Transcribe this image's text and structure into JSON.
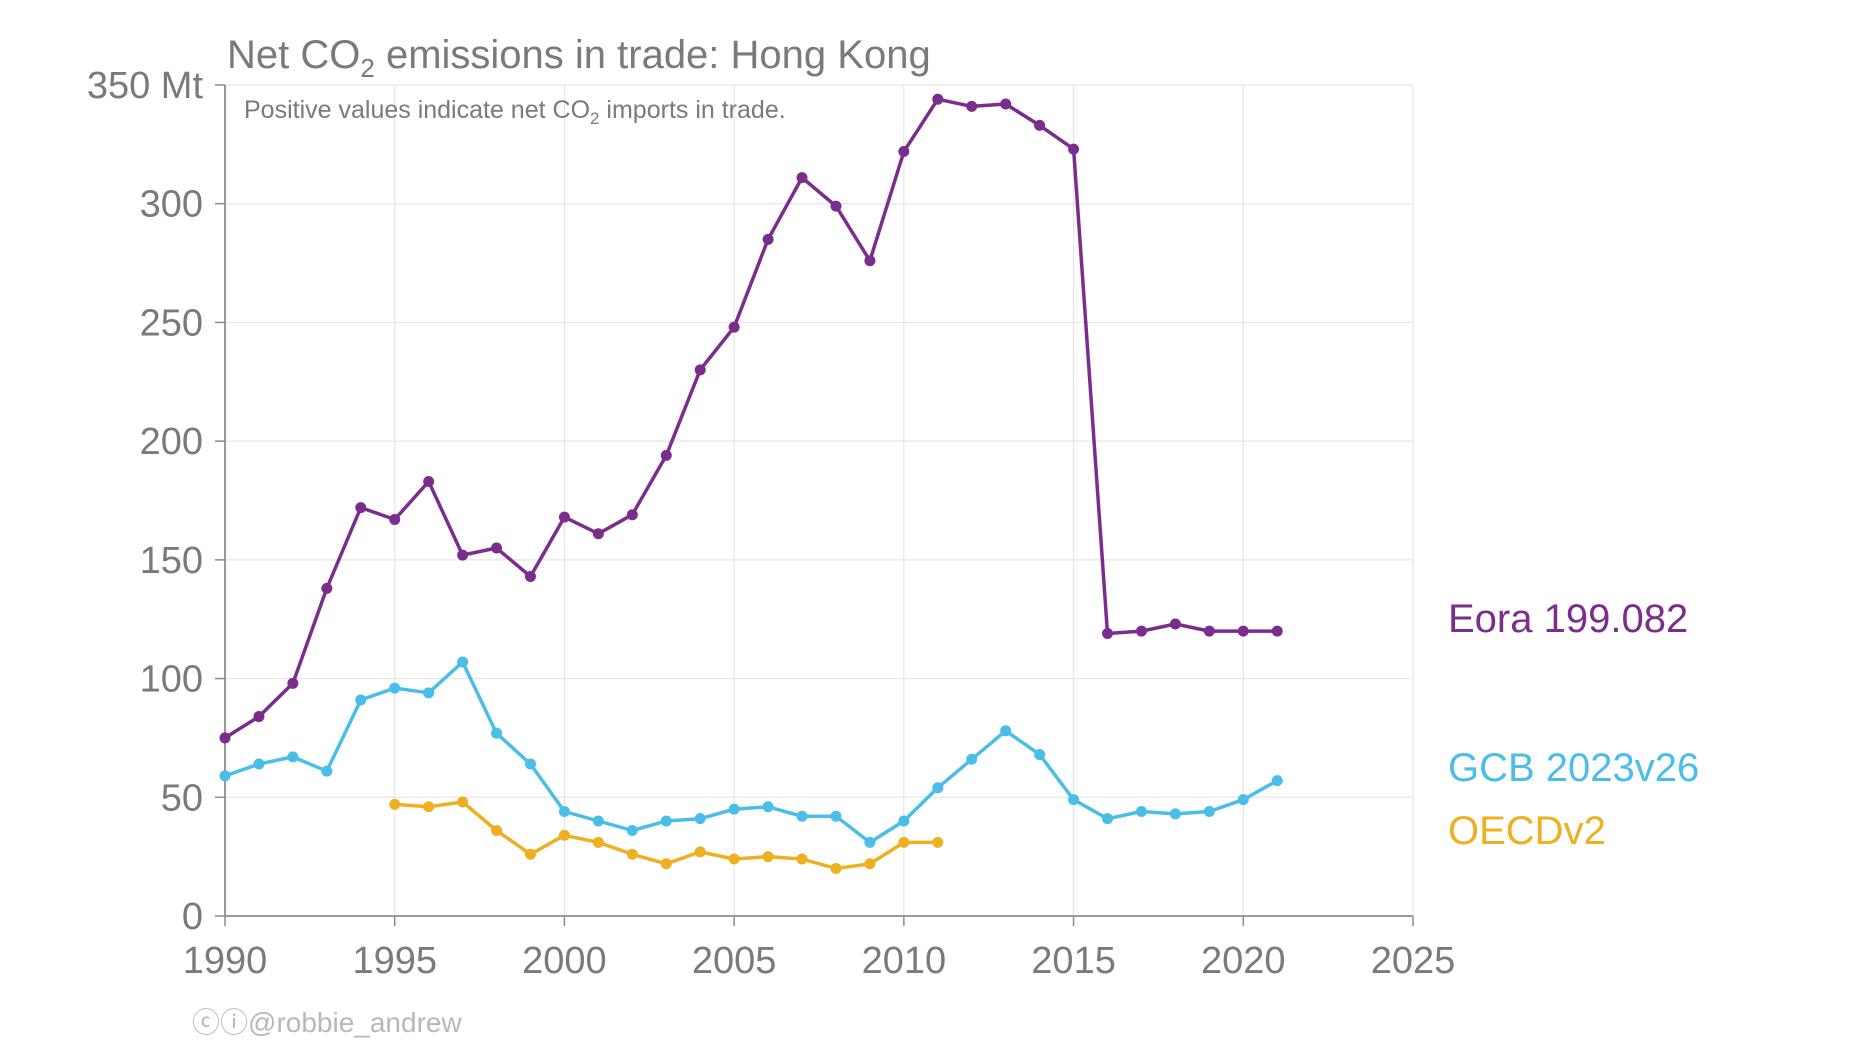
{
  "colors": {
    "eora": "#7b2d8e",
    "gcb": "#4bbde9",
    "oecd": "#eeb020",
    "grid": "#e6e6e6",
    "axis": "#8c8c8c",
    "text": "#7a7a7a",
    "credit": "#b8b8b8"
  },
  "chart_data": {
    "type": "line",
    "title_prefix": "Net CO",
    "title_sub": "2",
    "title_suffix": " emissions in trade: Hong Kong",
    "subtitle_prefix": "Positive values indicate net CO",
    "subtitle_sub": "2",
    "subtitle_suffix": " imports in trade.",
    "xlim": [
      1990,
      2025
    ],
    "ylim": [
      0,
      350
    ],
    "x_ticks": [
      "1990",
      "1995",
      "2000",
      "2005",
      "2010",
      "2015",
      "2020",
      "2025"
    ],
    "y_ticks": [
      "0",
      "50",
      "100",
      "150",
      "200",
      "250",
      "300",
      "350 Mt"
    ],
    "grid": true,
    "series": [
      {
        "name": "Eora 199.082",
        "color_key": "eora",
        "x": [
          1990,
          1991,
          1992,
          1993,
          1994,
          1995,
          1996,
          1997,
          1998,
          1999,
          2000,
          2001,
          2002,
          2003,
          2004,
          2005,
          2006,
          2007,
          2008,
          2009,
          2010,
          2011,
          2012,
          2013,
          2014,
          2015,
          2016,
          2017,
          2018,
          2019,
          2020,
          2021
        ],
        "values": [
          75,
          84,
          98,
          138,
          172,
          167,
          183,
          152,
          155,
          143,
          168,
          161,
          169,
          194,
          230,
          248,
          285,
          311,
          299,
          276,
          322,
          344,
          341,
          342,
          333,
          323,
          119,
          120,
          123,
          120,
          120,
          120
        ]
      },
      {
        "name": "GCB 2023v26",
        "color_key": "gcb",
        "x": [
          1990,
          1991,
          1992,
          1993,
          1994,
          1995,
          1996,
          1997,
          1998,
          1999,
          2000,
          2001,
          2002,
          2003,
          2004,
          2005,
          2006,
          2007,
          2008,
          2009,
          2010,
          2011,
          2012,
          2013,
          2014,
          2015,
          2016,
          2017,
          2018,
          2019,
          2020,
          2021
        ],
        "values": [
          59,
          64,
          67,
          61,
          91,
          96,
          94,
          107,
          77,
          64,
          44,
          40,
          36,
          40,
          41,
          45,
          46,
          42,
          42,
          31,
          40,
          54,
          66,
          78,
          68,
          49,
          41,
          44,
          43,
          44,
          49,
          57
        ]
      },
      {
        "name": "OECDv2",
        "color_key": "oecd",
        "x": [
          1995,
          1996,
          1997,
          1998,
          1999,
          2000,
          2001,
          2002,
          2003,
          2004,
          2005,
          2006,
          2007,
          2008,
          2009,
          2010,
          2011
        ],
        "values": [
          47,
          46,
          48,
          36,
          26,
          34,
          31,
          26,
          22,
          27,
          24,
          25,
          24,
          20,
          22,
          31,
          31
        ]
      }
    ]
  },
  "credit": {
    "icons": "ⓒⓘ",
    "text": "@robbie_andrew"
  }
}
